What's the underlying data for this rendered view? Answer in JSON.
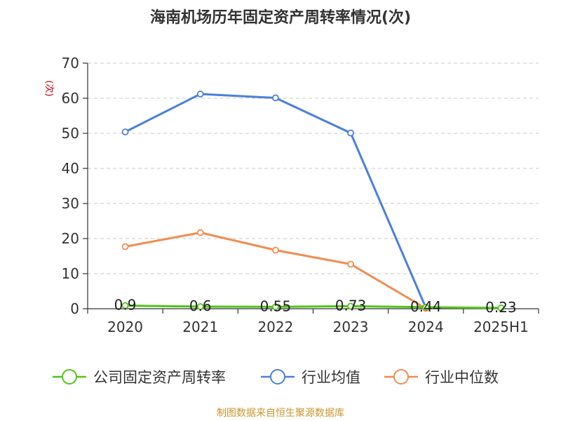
{
  "chart_data": {
    "type": "line",
    "title": "海南机场历年固定资产周转率情况(次)",
    "ylabel": "(次)",
    "xlabel": "",
    "categories": [
      "2020",
      "2021",
      "2022",
      "2023",
      "2024",
      "2025H1"
    ],
    "ylim": [
      0,
      70
    ],
    "yticks": [
      0,
      10,
      20,
      30,
      40,
      50,
      60,
      70
    ],
    "grid": true,
    "legend_position": "bottom",
    "series": [
      {
        "name": "公司固定资产周转率",
        "color": "#52c41a",
        "values": [
          0.9,
          0.6,
          0.55,
          0.73,
          0.44,
          0.23
        ],
        "labels": [
          "0.9",
          "0.6",
          "0.55",
          "0.73",
          "0.44",
          "0.23"
        ]
      },
      {
        "name": "行业均值",
        "color": "#4a7fdc",
        "values": [
          50.4,
          61.2,
          60.1,
          50.1,
          0.3,
          null
        ]
      },
      {
        "name": "行业中位数",
        "color": "#f28c50",
        "values": [
          17.7,
          21.7,
          16.7,
          12.7,
          0.1,
          null
        ]
      }
    ],
    "source": "制图数据来自恒生聚源数据库"
  }
}
